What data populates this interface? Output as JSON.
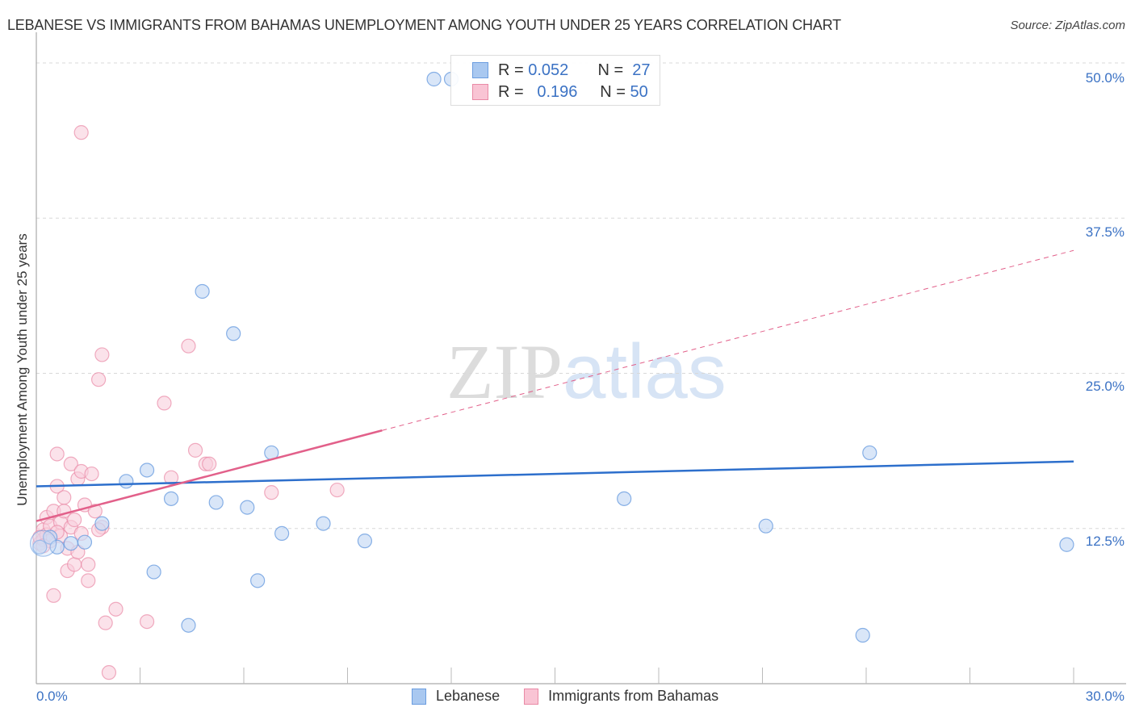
{
  "header": {
    "title": "LEBANESE VS IMMIGRANTS FROM BAHAMAS UNEMPLOYMENT AMONG YOUTH UNDER 25 YEARS CORRELATION CHART",
    "source": "Source: ZipAtlas.com"
  },
  "legend_box": {
    "rows": [
      {
        "r_label": "R =",
        "r_value": "0.052",
        "n_label": "N =",
        "n_value": "27",
        "color": "#a9c8f0",
        "border": "#6b9de0"
      },
      {
        "r_label": "R =",
        "r_value": "0.196",
        "n_label": "N =",
        "n_value": "50",
        "color": "#f9c4d4",
        "border": "#e98aa6"
      }
    ]
  },
  "axes": {
    "ylabel": "Unemployment Among Youth under 25 years",
    "yticks": [
      "50.0%",
      "37.5%",
      "25.0%",
      "12.5%"
    ],
    "xtick_left": "0.0%",
    "xtick_right": "30.0%"
  },
  "bottom_legend": {
    "items": [
      {
        "label": "Lebanese",
        "color": "#a9c8f0",
        "border": "#6b9de0"
      },
      {
        "label": "Immigrants from Bahamas",
        "color": "#f9c4d4",
        "border": "#e98aa6"
      }
    ]
  },
  "watermark": {
    "zip": "ZIP",
    "atlas": "atlas"
  },
  "colors": {
    "blue_fill": "#c9dcf5",
    "blue_stroke": "#6b9de0",
    "blue_line": "#2d6fcc",
    "pink_fill": "#f9cfdc",
    "pink_stroke": "#e98aa6",
    "pink_line": "#e2608a",
    "grid": "#d8d8d8",
    "axis_text": "#3b72c4"
  },
  "chart_data": {
    "type": "scatter",
    "title": "LEBANESE VS IMMIGRANTS FROM BAHAMAS UNEMPLOYMENT AMONG YOUTH UNDER 25 YEARS CORRELATION CHART",
    "xlabel": "",
    "ylabel": "Unemployment Among Youth under 25 years",
    "xlim": [
      0,
      30
    ],
    "ylim": [
      0,
      50
    ],
    "x_tick_labels": [
      "0.0%",
      "30.0%"
    ],
    "y_tick_labels": [
      "12.5%",
      "25.0%",
      "37.5%",
      "50.0%"
    ],
    "grid": true,
    "legend_position": "top-center",
    "series": [
      {
        "name": "Lebanese",
        "R": 0.052,
        "N": 27,
        "points": [
          [
            0.1,
            11.0
          ],
          [
            0.4,
            11.8
          ],
          [
            0.6,
            11.0
          ],
          [
            1.0,
            11.3
          ],
          [
            1.4,
            11.4
          ],
          [
            1.9,
            12.9
          ],
          [
            2.6,
            16.3
          ],
          [
            3.2,
            17.2
          ],
          [
            3.4,
            9.0
          ],
          [
            3.9,
            14.9
          ],
          [
            4.4,
            4.7
          ],
          [
            4.8,
            31.6
          ],
          [
            5.2,
            14.6
          ],
          [
            5.7,
            28.2
          ],
          [
            6.1,
            14.2
          ],
          [
            6.4,
            8.3
          ],
          [
            6.8,
            18.6
          ],
          [
            7.1,
            12.1
          ],
          [
            8.3,
            12.9
          ],
          [
            9.5,
            11.5
          ],
          [
            11.5,
            48.7
          ],
          [
            12.0,
            48.7
          ],
          [
            17.0,
            14.9
          ],
          [
            21.1,
            12.7
          ],
          [
            23.9,
            3.9
          ],
          [
            24.1,
            18.6
          ],
          [
            29.8,
            11.2
          ]
        ],
        "trend": {
          "x": [
            0,
            30
          ],
          "y": [
            15.9,
            17.9
          ]
        }
      },
      {
        "name": "Immigrants from Bahamas",
        "R": 0.196,
        "N": 50,
        "points": [
          [
            0.1,
            11.3
          ],
          [
            0.2,
            12.4
          ],
          [
            0.2,
            11.6
          ],
          [
            0.3,
            13.4
          ],
          [
            0.3,
            12.0
          ],
          [
            0.4,
            12.7
          ],
          [
            0.4,
            11.5
          ],
          [
            0.5,
            13.9
          ],
          [
            0.5,
            7.1
          ],
          [
            0.6,
            15.9
          ],
          [
            0.6,
            18.5
          ],
          [
            0.7,
            13.0
          ],
          [
            0.7,
            11.9
          ],
          [
            0.8,
            15.0
          ],
          [
            0.8,
            13.9
          ],
          [
            0.9,
            10.9
          ],
          [
            0.9,
            9.1
          ],
          [
            1.0,
            17.7
          ],
          [
            1.0,
            12.6
          ],
          [
            1.1,
            9.6
          ],
          [
            1.2,
            16.5
          ],
          [
            1.2,
            10.6
          ],
          [
            1.3,
            12.1
          ],
          [
            1.3,
            17.1
          ],
          [
            1.4,
            14.4
          ],
          [
            1.5,
            9.6
          ],
          [
            1.5,
            8.3
          ],
          [
            1.6,
            16.9
          ],
          [
            1.7,
            13.9
          ],
          [
            1.9,
            12.6
          ],
          [
            1.8,
            12.4
          ],
          [
            1.9,
            26.5
          ],
          [
            1.8,
            24.5
          ],
          [
            1.3,
            44.4
          ],
          [
            2.0,
            4.9
          ],
          [
            2.3,
            6.0
          ],
          [
            2.1,
            0.9
          ],
          [
            3.2,
            5.0
          ],
          [
            3.7,
            22.6
          ],
          [
            3.9,
            16.6
          ],
          [
            4.4,
            27.2
          ],
          [
            4.6,
            18.8
          ],
          [
            4.9,
            17.7
          ],
          [
            5.0,
            17.7
          ],
          [
            6.8,
            15.4
          ],
          [
            8.7,
            15.6
          ],
          [
            0.1,
            11.8
          ],
          [
            0.2,
            11.1
          ],
          [
            0.6,
            12.2
          ],
          [
            1.1,
            13.2
          ]
        ],
        "trend_solid": {
          "x": [
            0,
            10
          ],
          "y": [
            13.1,
            20.4
          ]
        },
        "trend_dashed": {
          "x": [
            10,
            30
          ],
          "y": [
            20.4,
            34.9
          ]
        }
      }
    ]
  }
}
